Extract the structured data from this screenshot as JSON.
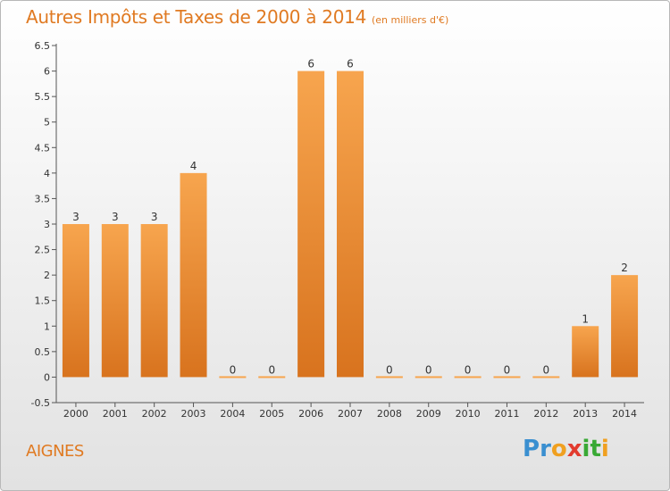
{
  "header": {
    "title": "Autres Impôts et Taxes de 2000 à 2014",
    "unit": "(en milliers d'€)"
  },
  "footer": {
    "place": "AIGNES",
    "brand": [
      "P",
      "r",
      "o",
      "x",
      "i",
      "t",
      "i"
    ],
    "brand_colors": [
      "#3a8fd0",
      "#3a8fd0",
      "#f0a020",
      "#e23b2e",
      "#39a935",
      "#39a935",
      "#f0a020"
    ]
  },
  "chart_data": {
    "type": "bar",
    "title": "Autres Impôts et Taxes de 2000 à 2014",
    "ylabel": "",
    "xlabel": "",
    "categories": [
      "2000",
      "2001",
      "2002",
      "2003",
      "2004",
      "2005",
      "2006",
      "2007",
      "2008",
      "2009",
      "2010",
      "2011",
      "2012",
      "2013",
      "2014"
    ],
    "values": [
      3,
      3,
      3,
      4,
      0,
      0,
      6,
      6,
      0,
      0,
      0,
      0,
      0,
      1,
      2
    ],
    "data_labels": [
      "3",
      "3",
      "3",
      "4",
      "0",
      "0",
      "6",
      "6",
      "0",
      "0",
      "0",
      "0",
      "0",
      "1",
      "2"
    ],
    "ylim": [
      -0.5,
      6.5
    ],
    "yticks": [
      "-0.5",
      "0",
      "0.5",
      "1",
      "1.5",
      "2",
      "2.5",
      "3",
      "3.5",
      "4",
      "4.5",
      "5",
      "5.5",
      "6",
      "6.5"
    ],
    "grid": false,
    "colors": {
      "bar_light": "#f7a54e",
      "bar_dark": "#d8731e",
      "text": "#e07a22"
    }
  }
}
